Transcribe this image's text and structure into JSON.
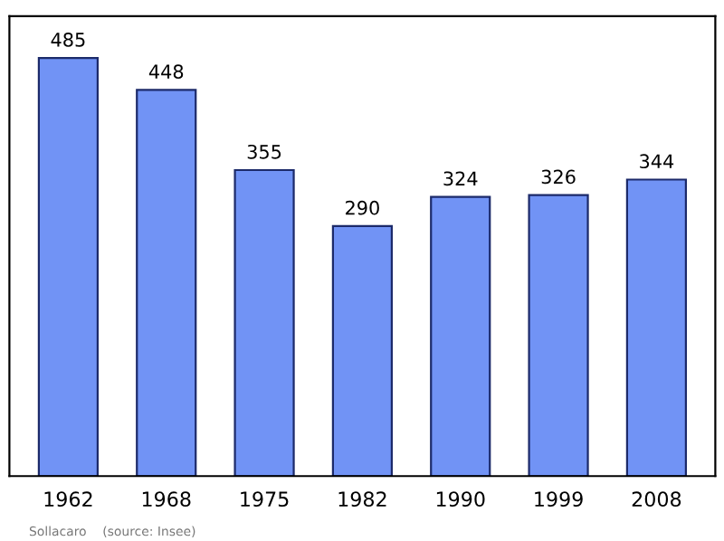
{
  "chart_data": {
    "type": "bar",
    "categories": [
      "1962",
      "1968",
      "1975",
      "1982",
      "1990",
      "1999",
      "2008"
    ],
    "values": [
      485,
      448,
      355,
      290,
      324,
      326,
      344
    ],
    "color": "#7193f5",
    "data_labels": true,
    "grid": false,
    "legend": false,
    "tick_labels": "x",
    "annotations": [
      "Sollacaro    (source: Insee)"
    ]
  }
}
